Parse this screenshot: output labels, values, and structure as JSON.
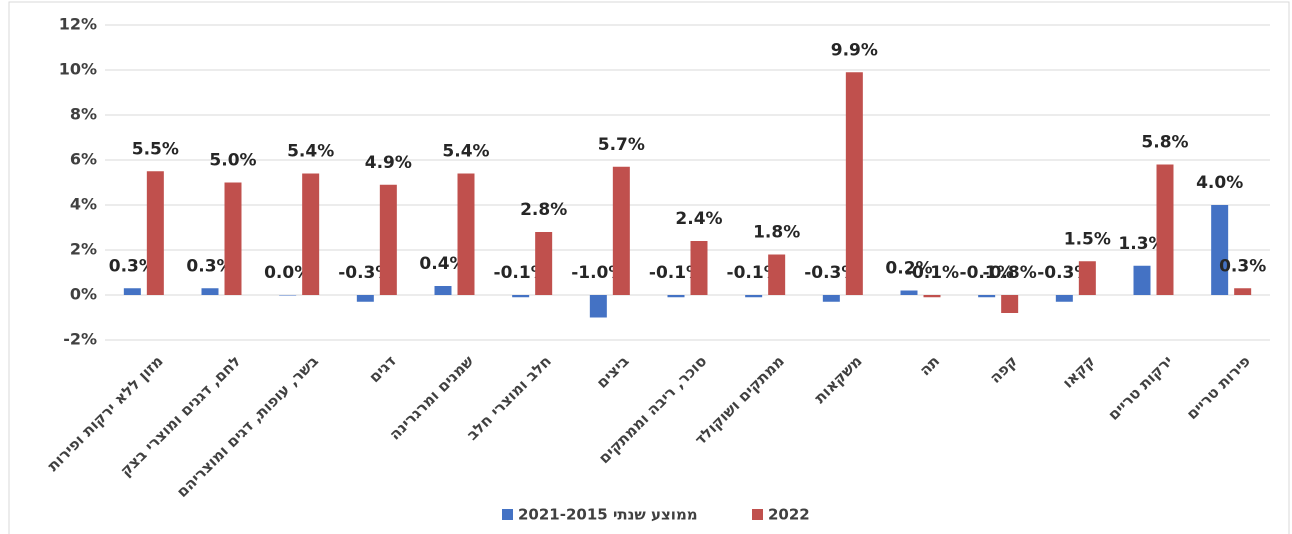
{
  "chart_data": {
    "type": "bar",
    "categories": [
      "מזון ללא ירקות ופירות",
      "לחם, דגנים ומוצרי בצק",
      "בשר, עופות, דגים ומוצריהם",
      "דגים",
      "שמנים ומרגרינה",
      "חלב ומוצרי חלב",
      "ביצים",
      "סוכר, ריבה וממתקים",
      "ממתקים ושוקולד",
      "משקאות",
      "תה",
      "קפה",
      "קקאו",
      "ירקות טריים",
      "פירות טריים"
    ],
    "series": [
      {
        "name": "ממוצע שנתי 2021-2015",
        "color": "#4472c4",
        "values": [
          0.3,
          0.3,
          0.0,
          -0.3,
          0.4,
          -0.1,
          -1.0,
          -0.1,
          -0.1,
          -0.3,
          0.2,
          -0.1,
          -0.3,
          1.3,
          4.0
        ],
        "value_labels": [
          "0.3%",
          "0.3%",
          "0.0%",
          "-0.3%",
          "0.4%",
          "-0.1%",
          "-1.0%",
          "-0.1%",
          "-0.1%",
          "-0.3%",
          "0.2%",
          "-0.1%",
          "-0.3%",
          "1.3%",
          "4.0%"
        ]
      },
      {
        "name": "2022",
        "color": "#c0504d",
        "values": [
          5.5,
          5.0,
          5.4,
          4.9,
          5.4,
          2.8,
          5.7,
          2.4,
          1.8,
          9.9,
          -0.1,
          -0.8,
          1.5,
          5.8,
          0.3
        ],
        "value_labels": [
          "5.5%",
          "5.0%",
          "5.4%",
          "4.9%",
          "5.4%",
          "2.8%",
          "5.7%",
          "2.4%",
          "1.8%",
          "9.9%",
          "-0.1%",
          "-0.8%",
          "1.5%",
          "5.8%",
          "0.3%"
        ]
      }
    ],
    "ylim": [
      -2,
      12
    ],
    "yticks": [
      {
        "value": -2,
        "label": "-2%"
      },
      {
        "value": 0,
        "label": "0%"
      },
      {
        "value": 2,
        "label": "2%"
      },
      {
        "value": 4,
        "label": "4%"
      },
      {
        "value": 6,
        "label": "6%"
      },
      {
        "value": 8,
        "label": "8%"
      },
      {
        "value": 10,
        "label": "10%"
      },
      {
        "value": 12,
        "label": "12%"
      }
    ],
    "grid": true
  }
}
